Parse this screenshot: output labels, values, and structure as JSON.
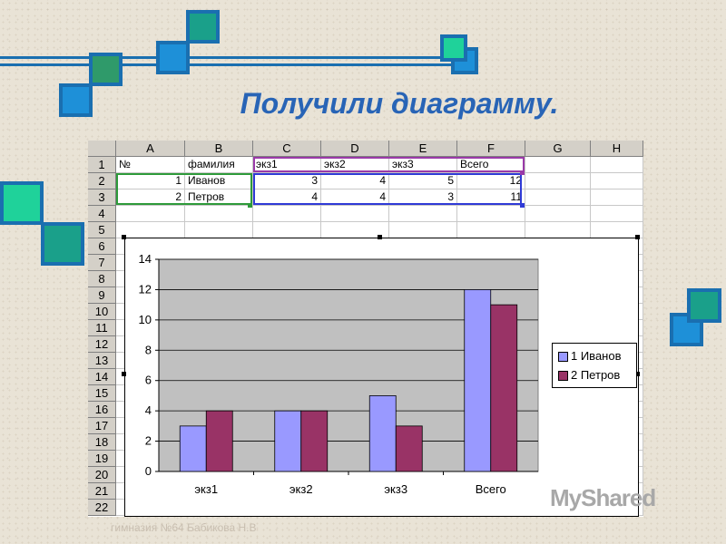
{
  "slide": {
    "title": "Получили диаграмму.",
    "footer": "гимназия №64 Бабикова Н.В",
    "watermark": "MyShared"
  },
  "spreadsheet": {
    "columns": [
      "A",
      "B",
      "C",
      "D",
      "E",
      "F",
      "G",
      "H"
    ],
    "rows": [
      "1",
      "2",
      "3",
      "4",
      "5",
      "6",
      "7",
      "8",
      "9",
      "10",
      "11",
      "12",
      "13",
      "14",
      "15",
      "16",
      "17",
      "18",
      "19",
      "20",
      "21",
      "22"
    ],
    "header_row": [
      "№",
      "фамилия",
      "экз1",
      "экз2",
      "экз3",
      "Всего"
    ],
    "data_rows": [
      [
        "1",
        "Иванов",
        "3",
        "4",
        "5",
        "12"
      ],
      [
        "2",
        "Петров",
        "4",
        "4",
        "3",
        "11"
      ]
    ]
  },
  "chart_data": {
    "type": "bar",
    "categories": [
      "экз1",
      "экз2",
      "экз3",
      "Всего"
    ],
    "series": [
      {
        "name": "1 Иванов",
        "values": [
          3,
          4,
          5,
          12
        ],
        "color": "#9999ff"
      },
      {
        "name": "2 Петров",
        "values": [
          4,
          4,
          3,
          11
        ],
        "color": "#993366"
      }
    ],
    "ylim": [
      0,
      14
    ],
    "yticks": [
      "0",
      "2",
      "4",
      "6",
      "8",
      "10",
      "12",
      "14"
    ],
    "plot_bg": "#c0c0c0",
    "legend_position": "right",
    "grid": true
  },
  "colors": {
    "accent_blue": "#1a6fb0",
    "title_blue": "#2864b6",
    "square_green": "#2f9a6a",
    "square_teal": "#1aa08a",
    "square_blue": "#1e90d8"
  }
}
